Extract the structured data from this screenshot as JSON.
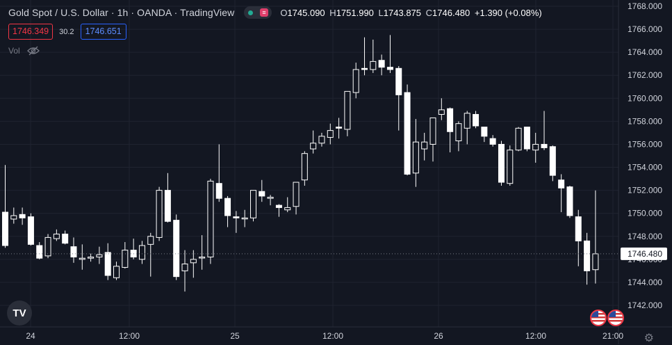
{
  "legend": {
    "symbol_title": "Gold Spot / U.S. Dollar · 1h · OANDA · TradingView",
    "open_label": "O",
    "open_value": "1745.090",
    "high_label": "H",
    "high_value": "1751.990",
    "low_label": "L",
    "low_value": "1743.875",
    "close_label": "C",
    "close_value": "1746.480",
    "change": "+1.390 (+0.08%)",
    "status_icon": "market-open-dot",
    "market_icon": "≡"
  },
  "order_panel": {
    "sell_price": "1746.349",
    "spread": "30.2",
    "buy_price": "1746.651"
  },
  "volume": {
    "label": "Vol",
    "icon": "eye-off-icon"
  },
  "logo": {
    "text": "TV"
  },
  "price_axis": {
    "ticks": [
      "1768.000",
      "1766.000",
      "1764.000",
      "1762.000",
      "1760.000",
      "1758.000",
      "1756.000",
      "1754.000",
      "1752.000",
      "1750.000",
      "1748.000",
      "1746.000",
      "1744.000",
      "1742.000"
    ],
    "current_price": "1746.480"
  },
  "time_axis": {
    "labels": [
      "24",
      "12:00",
      "25",
      "12:00",
      "26",
      "12:00",
      "21:00"
    ]
  },
  "colors": {
    "background": "#131722",
    "candle": "#ffffff",
    "grid": "#1f2330",
    "axis_text": "#d1d4dc",
    "accent_red": "#f23645",
    "accent_blue": "#2962ff"
  },
  "chart_data": {
    "type": "candlestick",
    "symbol": "Gold Spot / U.S. Dollar",
    "interval": "1h",
    "ylim": [
      1741.0,
      1769.0
    ],
    "ohlc": [
      [
        1750.1,
        1754.2,
        1747.0,
        1747.2
      ],
      [
        1749.5,
        1750.5,
        1749.1,
        1749.8
      ],
      [
        1749.9,
        1750.5,
        1749.0,
        1749.6
      ],
      [
        1749.7,
        1750.0,
        1747.2,
        1747.3
      ],
      [
        1747.2,
        1747.5,
        1746.0,
        1746.1
      ],
      [
        1746.3,
        1748.2,
        1746.1,
        1747.9
      ],
      [
        1747.8,
        1748.6,
        1747.6,
        1748.2
      ],
      [
        1748.2,
        1748.5,
        1747.3,
        1747.4
      ],
      [
        1747.1,
        1747.9,
        1745.7,
        1746.2
      ],
      [
        1746.0,
        1747.3,
        1745.1,
        1746.1
      ],
      [
        1746.1,
        1746.5,
        1745.8,
        1746.2
      ],
      [
        1746.2,
        1747.1,
        1745.6,
        1746.4
      ],
      [
        1746.6,
        1747.4,
        1744.2,
        1744.6
      ],
      [
        1744.4,
        1745.8,
        1744.2,
        1745.4
      ],
      [
        1745.3,
        1747.5,
        1745.2,
        1746.8
      ],
      [
        1746.8,
        1747.8,
        1746.0,
        1746.2
      ],
      [
        1746.0,
        1747.6,
        1745.6,
        1747.2
      ],
      [
        1747.3,
        1748.3,
        1744.5,
        1748.0
      ],
      [
        1747.9,
        1752.3,
        1747.6,
        1752.0
      ],
      [
        1752.0,
        1753.5,
        1749.2,
        1749.3
      ],
      [
        1749.4,
        1749.9,
        1744.2,
        1744.5
      ],
      [
        1745.0,
        1746.8,
        1743.2,
        1745.6
      ],
      [
        1745.7,
        1746.8,
        1744.4,
        1746.0
      ],
      [
        1746.2,
        1748.1,
        1745.1,
        1746.2
      ],
      [
        1746.2,
        1753.0,
        1745.6,
        1752.8
      ],
      [
        1752.6,
        1756.0,
        1751.0,
        1751.3
      ],
      [
        1751.3,
        1751.5,
        1748.8,
        1749.8
      ],
      [
        1749.7,
        1750.2,
        1748.3,
        1749.6
      ],
      [
        1749.6,
        1750.3,
        1748.8,
        1749.6
      ],
      [
        1749.6,
        1752.0,
        1749.3,
        1752.0
      ],
      [
        1751.9,
        1752.9,
        1751.0,
        1751.5
      ],
      [
        1751.3,
        1751.6,
        1750.7,
        1751.4
      ],
      [
        1750.7,
        1750.8,
        1749.7,
        1750.5
      ],
      [
        1750.3,
        1751.4,
        1750.1,
        1750.5
      ],
      [
        1750.6,
        1752.7,
        1749.9,
        1752.7
      ],
      [
        1752.9,
        1755.4,
        1752.4,
        1755.2
      ],
      [
        1755.6,
        1757.2,
        1755.2,
        1756.1
      ],
      [
        1756.1,
        1757.0,
        1755.8,
        1756.7
      ],
      [
        1756.6,
        1757.8,
        1756.0,
        1757.2
      ],
      [
        1757.5,
        1758.3,
        1756.5,
        1757.4
      ],
      [
        1757.3,
        1760.5,
        1756.7,
        1760.6
      ],
      [
        1760.5,
        1763.1,
        1760.0,
        1762.5
      ],
      [
        1762.6,
        1765.3,
        1762.0,
        1762.5
      ],
      [
        1762.5,
        1765.1,
        1762.2,
        1763.2
      ],
      [
        1763.3,
        1763.8,
        1762.0,
        1762.7
      ],
      [
        1762.7,
        1765.5,
        1762.2,
        1762.5
      ],
      [
        1762.6,
        1762.8,
        1757.2,
        1760.3
      ],
      [
        1760.5,
        1761.2,
        1753.3,
        1753.4
      ],
      [
        1753.5,
        1758.2,
        1752.3,
        1756.2
      ],
      [
        1755.6,
        1757.0,
        1754.6,
        1756.2
      ],
      [
        1756.0,
        1758.3,
        1754.5,
        1758.3
      ],
      [
        1758.6,
        1760.0,
        1758.1,
        1759.0
      ],
      [
        1759.1,
        1759.2,
        1755.3,
        1757.1
      ],
      [
        1756.3,
        1758.0,
        1755.4,
        1757.8
      ],
      [
        1757.4,
        1758.9,
        1756.0,
        1758.7
      ],
      [
        1758.6,
        1758.9,
        1757.4,
        1757.6
      ],
      [
        1757.5,
        1757.5,
        1756.2,
        1756.7
      ],
      [
        1756.5,
        1756.8,
        1755.8,
        1756.0
      ],
      [
        1756.0,
        1756.3,
        1752.4,
        1752.7
      ],
      [
        1752.6,
        1755.9,
        1752.4,
        1755.5
      ],
      [
        1755.5,
        1757.5,
        1755.4,
        1757.4
      ],
      [
        1757.5,
        1757.5,
        1755.4,
        1755.6
      ],
      [
        1755.5,
        1757.0,
        1754.4,
        1756.0
      ],
      [
        1756.0,
        1758.9,
        1755.5,
        1755.7
      ],
      [
        1755.8,
        1755.9,
        1752.8,
        1753.3
      ],
      [
        1752.9,
        1753.4,
        1750.1,
        1752.2
      ],
      [
        1752.3,
        1752.4,
        1749.6,
        1749.8
      ],
      [
        1749.7,
        1750.3,
        1745.4,
        1747.6
      ],
      [
        1747.6,
        1748.3,
        1743.8,
        1745.0
      ],
      [
        1745.1,
        1751.99,
        1743.9,
        1746.48
      ]
    ]
  }
}
